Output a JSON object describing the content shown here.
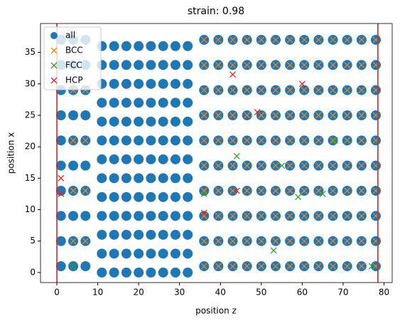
{
  "chart_data": {
    "type": "scatter",
    "title": "strain: 0.98",
    "x_label": "position z",
    "y_label": "position x",
    "xlim": [
      -4,
      82
    ],
    "ylim": [
      -1.6,
      39.6
    ],
    "xticks": [
      0,
      10,
      20,
      30,
      40,
      50,
      60,
      70,
      80
    ],
    "yticks": [
      0,
      5,
      10,
      15,
      20,
      25,
      30,
      35
    ],
    "vlines": [
      0,
      78.5
    ],
    "vline_color": "#d62728",
    "legend": "upper left",
    "series": [
      {
        "name": "all",
        "color": "#1f77b4",
        "marker": "circle",
        "x": [
          1,
          4,
          7,
          36,
          39.5,
          43,
          46.5,
          50,
          53.5,
          57,
          60.5,
          64,
          67.5,
          71,
          74.5,
          78,
          1,
          4,
          7,
          36,
          39.5,
          43,
          46.5,
          50,
          53.5,
          57,
          60.5,
          64,
          67.5,
          71,
          74.5,
          78,
          1,
          4,
          7,
          36,
          39.5,
          43,
          46.5,
          50,
          53.5,
          57,
          60.5,
          64,
          67.5,
          71,
          74.5,
          78,
          1,
          4,
          7,
          36,
          39.5,
          43,
          46.5,
          50,
          53.5,
          57,
          60.5,
          64,
          67.5,
          71,
          74.5,
          78,
          1,
          4,
          7,
          36,
          39.5,
          43,
          46.5,
          50,
          53.5,
          57,
          60.5,
          64,
          67.5,
          71,
          74.5,
          78,
          1,
          4,
          7,
          36,
          39.5,
          43,
          46.5,
          50,
          53.5,
          57,
          60.5,
          64,
          67.5,
          71,
          74.5,
          78,
          1,
          4,
          7,
          36,
          39.5,
          43,
          46.5,
          50,
          53.5,
          57,
          60.5,
          64,
          67.5,
          71,
          74.5,
          78,
          1,
          4,
          7,
          36,
          39.5,
          43,
          46.5,
          50,
          53.5,
          57,
          60.5,
          64,
          67.5,
          71,
          74.5,
          78,
          1,
          4,
          7,
          36,
          39.5,
          43,
          46.5,
          50,
          53.5,
          57,
          60.5,
          64,
          67.5,
          71,
          74.5,
          78,
          1,
          4,
          7,
          36,
          39.5,
          43,
          46.5,
          50,
          53.5,
          57,
          60.5,
          64,
          67.5,
          71,
          74.5,
          78,
          11,
          14,
          17,
          20,
          23,
          26,
          29,
          32,
          11,
          14,
          17,
          20,
          23,
          26,
          29,
          32,
          11,
          14,
          17,
          20,
          23,
          26,
          29,
          32,
          11,
          14,
          17,
          20,
          23,
          26,
          29,
          32,
          11,
          14,
          17,
          20,
          23,
          26,
          29,
          32,
          11,
          14,
          17,
          20,
          23,
          26,
          29,
          32,
          11,
          14,
          17,
          20,
          23,
          26,
          29,
          32,
          11,
          14,
          17,
          20,
          23,
          26,
          29,
          32,
          11,
          14,
          17,
          20,
          23,
          26,
          29,
          32,
          11,
          14,
          17,
          20,
          23,
          26,
          29,
          32,
          11,
          14,
          17,
          20,
          23,
          26,
          29,
          32,
          11,
          14,
          17,
          20,
          23,
          26,
          29,
          32,
          11,
          14,
          17,
          20,
          23,
          26,
          29,
          32
        ],
        "y": [
          1,
          1,
          1,
          1,
          1,
          1,
          1,
          1,
          1,
          1,
          1,
          1,
          1,
          1,
          1,
          1,
          5,
          5,
          5,
          5,
          5,
          5,
          5,
          5,
          5,
          5,
          5,
          5,
          5,
          5,
          5,
          5,
          9,
          9,
          9,
          9,
          9,
          9,
          9,
          9,
          9,
          9,
          9,
          9,
          9,
          9,
          9,
          9,
          13,
          13,
          13,
          13,
          13,
          13,
          13,
          13,
          13,
          13,
          13,
          13,
          13,
          13,
          13,
          13,
          17,
          17,
          17,
          17,
          17,
          17,
          17,
          17,
          17,
          17,
          17,
          17,
          17,
          17,
          17,
          17,
          21,
          21,
          21,
          21,
          21,
          21,
          21,
          21,
          21,
          21,
          21,
          21,
          21,
          21,
          21,
          21,
          25,
          25,
          25,
          25,
          25,
          25,
          25,
          25,
          25,
          25,
          25,
          25,
          25,
          25,
          25,
          25,
          29,
          29,
          29,
          29,
          29,
          29,
          29,
          29,
          29,
          29,
          29,
          29,
          29,
          29,
          29,
          29,
          33,
          33,
          33,
          33,
          33,
          33,
          33,
          33,
          33,
          33,
          33,
          33,
          33,
          33,
          33,
          33,
          37,
          37,
          37,
          37,
          37,
          37,
          37,
          37,
          37,
          37,
          37,
          37,
          37,
          37,
          37,
          37,
          0,
          0,
          0,
          0,
          0,
          0,
          0,
          0,
          3,
          3,
          3,
          3,
          3,
          3,
          3,
          3,
          6,
          6,
          6,
          6,
          6,
          6,
          6,
          6,
          9,
          9,
          9,
          9,
          9,
          9,
          9,
          9,
          12,
          12,
          12,
          12,
          12,
          12,
          12,
          12,
          15,
          15,
          15,
          15,
          15,
          15,
          15,
          15,
          18,
          18,
          18,
          18,
          18,
          18,
          18,
          18,
          21,
          21,
          21,
          21,
          21,
          21,
          21,
          21,
          24,
          24,
          24,
          24,
          24,
          24,
          24,
          24,
          27,
          27,
          27,
          27,
          27,
          27,
          27,
          27,
          30,
          30,
          30,
          30,
          30,
          30,
          30,
          30,
          33,
          33,
          33,
          33,
          33,
          33,
          33,
          33,
          36,
          36,
          36,
          36,
          36,
          36,
          36,
          36
        ]
      },
      {
        "name": "BCC",
        "color": "#ff7f0e",
        "marker": "x",
        "x": [
          36,
          39.5,
          43,
          46.5,
          50,
          53.5,
          57,
          60.5,
          64,
          67.5,
          71,
          74.5,
          78,
          36,
          39.5,
          43,
          46.5,
          50,
          53.5,
          57,
          60.5,
          64,
          67.5,
          71,
          74.5,
          78,
          36,
          39.5,
          43,
          46.5,
          50,
          53.5,
          57,
          60.5,
          64,
          67.5,
          71,
          74.5,
          78,
          36,
          39.5,
          43,
          46.5,
          50,
          53.5,
          57,
          60.5,
          64,
          67.5,
          71,
          74.5,
          78,
          36,
          39.5,
          43,
          46.5,
          50,
          53.5,
          57,
          60.5,
          64,
          67.5,
          71,
          74.5,
          78,
          36,
          39.5,
          43,
          46.5,
          50,
          53.5,
          57,
          60.5,
          64,
          67.5,
          71,
          74.5,
          78,
          36,
          39.5,
          43,
          46.5,
          50,
          53.5,
          57,
          60.5,
          64,
          67.5,
          71,
          74.5,
          78,
          36,
          39.5,
          43,
          46.5,
          50,
          53.5,
          57,
          60.5,
          64,
          67.5,
          71,
          74.5,
          78,
          36,
          39.5,
          43,
          46.5,
          50,
          53.5,
          57,
          60.5,
          64,
          67.5,
          71,
          74.5,
          78,
          36,
          39.5,
          43,
          46.5,
          50,
          53.5,
          57,
          60.5,
          64,
          67.5,
          71,
          74.5,
          78,
          4,
          7,
          4,
          7,
          4,
          7,
          4,
          7
        ],
        "y": [
          1,
          1,
          1,
          1,
          1,
          1,
          1,
          1,
          1,
          1,
          1,
          1,
          1,
          5,
          5,
          5,
          5,
          5,
          5,
          5,
          5,
          5,
          5,
          5,
          5,
          5,
          9,
          9,
          9,
          9,
          9,
          9,
          9,
          9,
          9,
          9,
          9,
          9,
          9,
          13,
          13,
          13,
          13,
          13,
          13,
          13,
          13,
          13,
          13,
          13,
          13,
          13,
          17,
          17,
          17,
          17,
          17,
          17,
          17,
          17,
          17,
          17,
          17,
          17,
          17,
          21,
          21,
          21,
          21,
          21,
          21,
          21,
          21,
          21,
          21,
          21,
          21,
          21,
          25,
          25,
          25,
          25,
          25,
          25,
          25,
          25,
          25,
          25,
          25,
          25,
          25,
          29,
          29,
          29,
          29,
          29,
          29,
          29,
          29,
          29,
          29,
          29,
          29,
          29,
          33,
          33,
          33,
          33,
          33,
          33,
          33,
          33,
          33,
          33,
          33,
          33,
          33,
          37,
          37,
          37,
          37,
          37,
          37,
          37,
          37,
          37,
          37,
          37,
          37,
          37,
          5,
          5,
          13,
          13,
          21,
          21,
          29,
          29
        ]
      },
      {
        "name": "FCC",
        "color": "#2ca02c",
        "marker": "x",
        "x": [
          4,
          44,
          55,
          59,
          65,
          68,
          53,
          77,
          36
        ],
        "y": [
          1,
          18.5,
          17,
          12,
          12.5,
          21,
          3.5,
          1,
          12.5
        ]
      },
      {
        "name": "HCP",
        "color": "#d62728",
        "marker": "x",
        "x": [
          1,
          1,
          43,
          49,
          44,
          36,
          60
        ],
        "y": [
          15,
          12.5,
          31.5,
          25.5,
          13,
          9.5,
          30
        ]
      }
    ]
  }
}
